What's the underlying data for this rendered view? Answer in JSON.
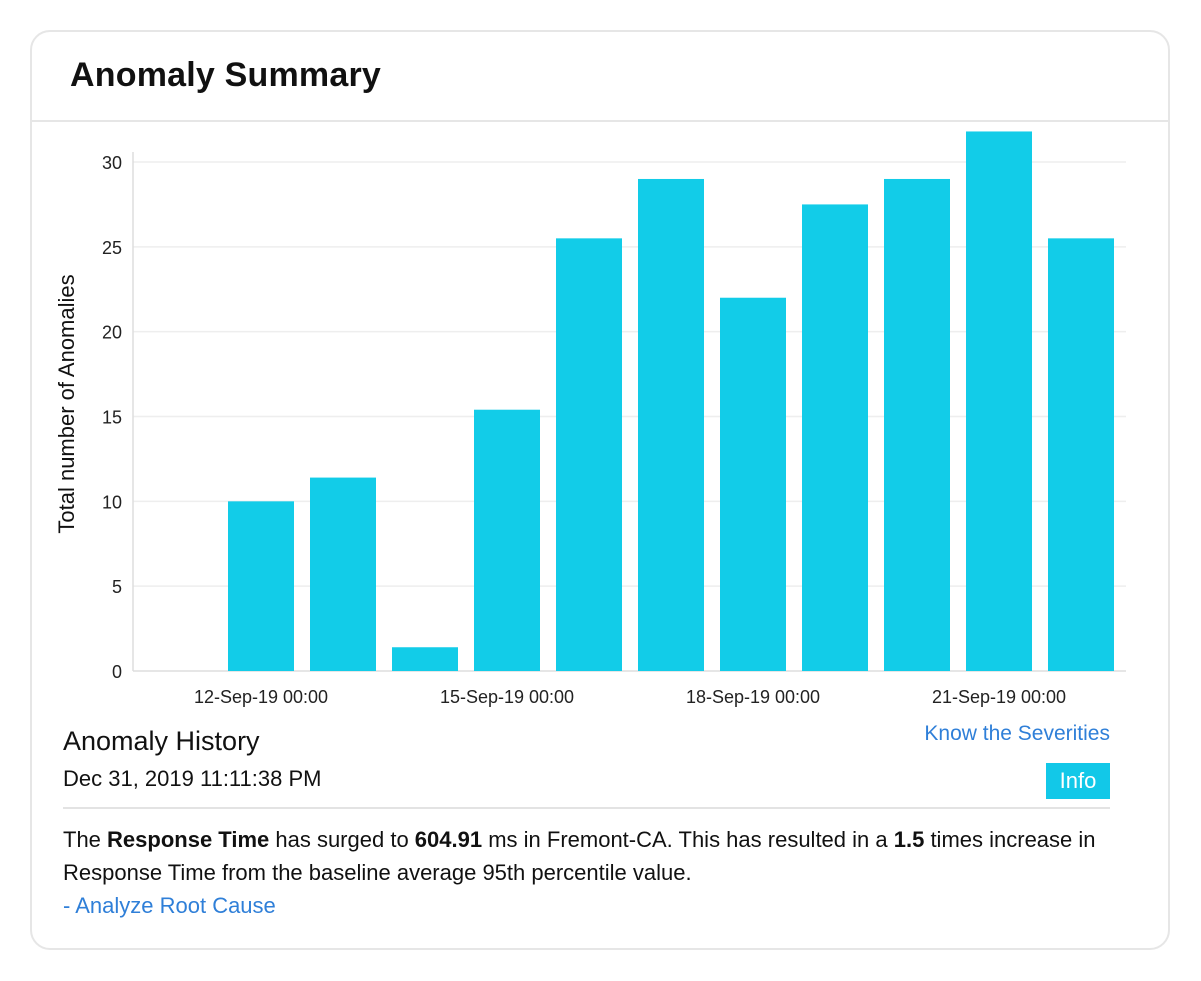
{
  "card": {
    "title": "Anomaly Summary"
  },
  "chart_data": {
    "type": "bar",
    "title": "",
    "xlabel": "",
    "ylabel": "Total number of Anomalies",
    "ylim": [
      0,
      30
    ],
    "yticks": [
      "0",
      "5",
      "10",
      "15",
      "20",
      "25",
      "30"
    ],
    "xtick_labels": [
      "12-Sep-19 00:00",
      "15-Sep-19 00:00",
      "18-Sep-19 00:00",
      "21-Sep-19 00:00"
    ],
    "x": [
      "11-Sep-19",
      "12-Sep-19",
      "13-Sep-19",
      "14-Sep-19",
      "15-Sep-19",
      "16-Sep-19",
      "17-Sep-19",
      "18-Sep-19",
      "19-Sep-19",
      "20-Sep-19",
      "21-Sep-19",
      "22-Sep-19"
    ],
    "values": [
      0,
      10,
      11.4,
      1.4,
      15.4,
      25.5,
      29,
      22,
      27.5,
      29,
      31.8,
      25.5
    ],
    "bar_color": "#12cce8",
    "grid": true,
    "legend": "none"
  },
  "history": {
    "title": "Anomaly History",
    "timestamp": "Dec 31, 2019 11:11:38 PM",
    "severities_link": "Know the Severities",
    "info_label": "Info",
    "message": {
      "p1": "The ",
      "b1": "Response Time",
      "p2": " has surged to ",
      "b2": "604.91",
      "p3": " ms in Fremont-CA. This has resulted in a ",
      "b3": "1.5",
      "p4": " times increase in Response Time from the baseline average 95th percentile value."
    },
    "root_cause_link": "- Analyze Root Cause"
  },
  "colors": {
    "accent": "#12c8e8",
    "link": "#2f7fd8"
  }
}
